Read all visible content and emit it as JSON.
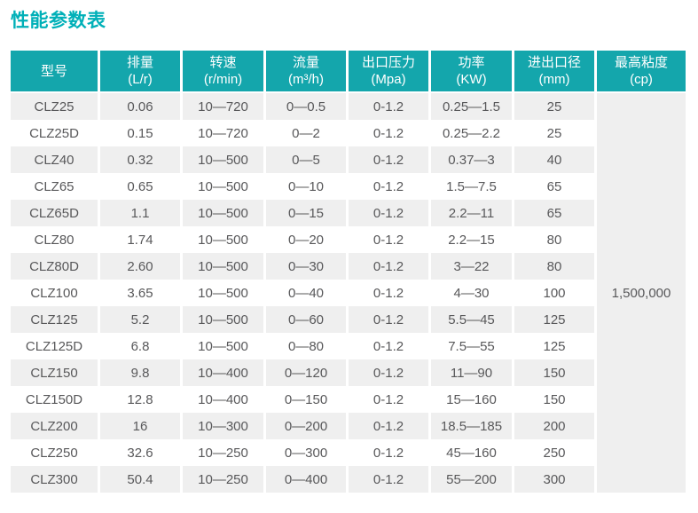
{
  "page": {
    "title": "性能参数表"
  },
  "table": {
    "columns": [
      {
        "name": "型号",
        "unit": ""
      },
      {
        "name": "排量",
        "unit": "(L/r)"
      },
      {
        "name": "转速",
        "unit": "(r/min)"
      },
      {
        "name": "流量",
        "unit": "(m³/h)"
      },
      {
        "name": "出口压力",
        "unit": "(Mpa)"
      },
      {
        "name": "功率",
        "unit": "(KW)"
      },
      {
        "name": "进出口径",
        "unit": "(mm)"
      },
      {
        "name": "最高粘度",
        "unit": "(cp)"
      }
    ],
    "rows": [
      [
        "CLZ25",
        "0.06",
        "10—720",
        "0—0.5",
        "0-1.2",
        "0.25—1.5",
        "25"
      ],
      [
        "CLZ25D",
        "0.15",
        "10—720",
        "0—2",
        "0-1.2",
        "0.25—2.2",
        "25"
      ],
      [
        "CLZ40",
        "0.32",
        "10—500",
        "0—5",
        "0-1.2",
        "0.37—3",
        "40"
      ],
      [
        "CLZ65",
        "0.65",
        "10—500",
        "0—10",
        "0-1.2",
        "1.5—7.5",
        "65"
      ],
      [
        "CLZ65D",
        "1.1",
        "10—500",
        "0—15",
        "0-1.2",
        "2.2—11",
        "65"
      ],
      [
        "CLZ80",
        "1.74",
        "10—500",
        "0—20",
        "0-1.2",
        "2.2—15",
        "80"
      ],
      [
        "CLZ80D",
        "2.60",
        "10—500",
        "0—30",
        "0-1.2",
        "3—22",
        "80"
      ],
      [
        "CLZ100",
        "3.65",
        "10—500",
        "0—40",
        "0-1.2",
        "4—30",
        "100"
      ],
      [
        "CLZ125",
        "5.2",
        "10—500",
        "0—60",
        "0-1.2",
        "5.5—45",
        "125"
      ],
      [
        "CLZ125D",
        "6.8",
        "10—500",
        "0—80",
        "0-1.2",
        "7.5—55",
        "125"
      ],
      [
        "CLZ150",
        "9.8",
        "10—400",
        "0—120",
        "0-1.2",
        "11—90",
        "150"
      ],
      [
        "CLZ150D",
        "12.8",
        "10—400",
        "0—150",
        "0-1.2",
        "15—160",
        "150"
      ],
      [
        "CLZ200",
        "16",
        "10—300",
        "0—200",
        "0-1.2",
        "18.5—185",
        "200"
      ],
      [
        "CLZ250",
        "32.6",
        "10—250",
        "0—300",
        "0-1.2",
        "45—160",
        "250"
      ],
      [
        "CLZ300",
        "50.4",
        "10—250",
        "0—400",
        "0-1.2",
        "55—200",
        "300"
      ]
    ],
    "merged_viscosity_value": "1,500,000"
  },
  "colors": {
    "title": "#00b0b8",
    "header_bg": "#14a6ac",
    "header_text": "#ffffff",
    "body_text": "#58585a",
    "row_alt_bg": "#efefef",
    "row_bg": "#ffffff"
  }
}
